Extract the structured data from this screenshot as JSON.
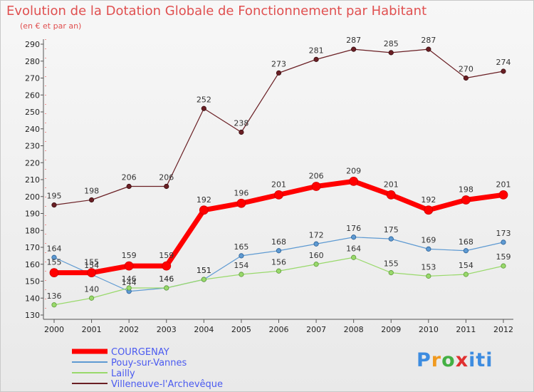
{
  "chart_data": {
    "type": "line",
    "title": "Evolution de la Dotation Globale de Fonctionnement par Habitant",
    "subtitle": "(en € et par an)",
    "xlabel": "",
    "ylabel": "",
    "categories": [
      "2000",
      "2001",
      "2002",
      "2003",
      "2004",
      "2005",
      "2006",
      "2007",
      "2008",
      "2009",
      "2010",
      "2011",
      "2012"
    ],
    "ylim": [
      130,
      290
    ],
    "yticks": [
      130,
      140,
      150,
      160,
      170,
      180,
      190,
      200,
      210,
      220,
      230,
      240,
      250,
      260,
      270,
      280,
      290
    ],
    "grid": false,
    "legend_position": "bottom-left",
    "series": [
      {
        "name": "Villeneuve-l'Archevêque",
        "color": "#6a1f24",
        "values": [
          195,
          198,
          206,
          206,
          252,
          238,
          273,
          281,
          287,
          285,
          287,
          270,
          274
        ]
      },
      {
        "name": "Pouy-sur-Vannes",
        "color": "#5e9ad2",
        "values": [
          164,
          154,
          144,
          146,
          151,
          165,
          168,
          172,
          176,
          175,
          169,
          168,
          173
        ]
      },
      {
        "name": "Lailly",
        "color": "#99d96b",
        "values": [
          136,
          140,
          146,
          146,
          151,
          154,
          156,
          160,
          164,
          155,
          153,
          154,
          159
        ]
      },
      {
        "name": "COURGENAY",
        "color": "#ff0000",
        "values": [
          155,
          155,
          159,
          159,
          192,
          196,
          201,
          206,
          209,
          201,
          192,
          198,
          201
        ]
      }
    ],
    "legend": [
      "COURGENAY",
      "Pouy-sur-Vannes",
      "Lailly",
      "Villeneuve-l'Archevêque"
    ]
  },
  "logo": {
    "p": "P",
    "r": "r",
    "o": "o",
    "x": "x",
    "i": "iti"
  }
}
